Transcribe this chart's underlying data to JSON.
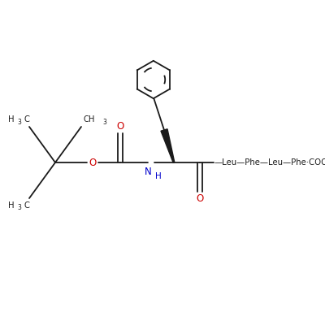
{
  "background": "#ffffff",
  "line_color": "#1a1a1a",
  "red": "#cc0000",
  "blue": "#0000cc",
  "figsize": [
    4.0,
    4.0
  ],
  "dpi": 100,
  "xlim": [
    0,
    10
  ],
  "ylim": [
    0,
    10
  ]
}
